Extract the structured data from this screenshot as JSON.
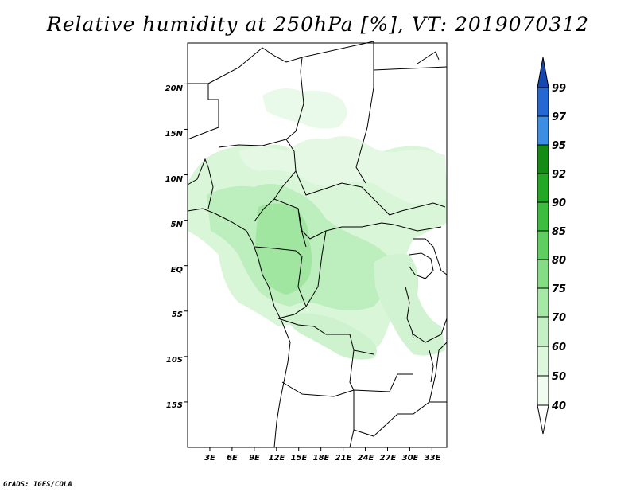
{
  "title": "Relative humidity at 250hPa [%], VT: 2019070312",
  "credit": "GrADS: IGES/COLA",
  "map": {
    "lon_range": [
      0,
      35
    ],
    "lat_range": [
      -20,
      24.5
    ],
    "x_ticks": [
      {
        "lon": 3,
        "label": "3E"
      },
      {
        "lon": 6,
        "label": "6E"
      },
      {
        "lon": 9,
        "label": "9E"
      },
      {
        "lon": 12,
        "label": "12E"
      },
      {
        "lon": 15,
        "label": "15E"
      },
      {
        "lon": 18,
        "label": "18E"
      },
      {
        "lon": 21,
        "label": "21E"
      },
      {
        "lon": 24,
        "label": "24E"
      },
      {
        "lon": 27,
        "label": "27E"
      },
      {
        "lon": 30,
        "label": "30E"
      },
      {
        "lon": 33,
        "label": "33E"
      }
    ],
    "y_ticks": [
      {
        "lat": 20,
        "label": "20N"
      },
      {
        "lat": 15,
        "label": "15N"
      },
      {
        "lat": 10,
        "label": "10N"
      },
      {
        "lat": 5,
        "label": "5N"
      },
      {
        "lat": 0,
        "label": "EQ"
      },
      {
        "lat": -5,
        "label": "5S"
      },
      {
        "lat": -10,
        "label": "10S"
      },
      {
        "lat": -15,
        "label": "15S"
      }
    ]
  },
  "colorbar": {
    "levels": [
      {
        "label": "40",
        "color": "#f0fcf0"
      },
      {
        "label": "50",
        "color": "#dcf7dc"
      },
      {
        "label": "60",
        "color": "#c4f0c4"
      },
      {
        "label": "70",
        "color": "#a6e8a6"
      },
      {
        "label": "75",
        "color": "#84dc84"
      },
      {
        "label": "80",
        "color": "#5ecf5e"
      },
      {
        "label": "85",
        "color": "#3dbd3d"
      },
      {
        "label": "90",
        "color": "#23a823"
      },
      {
        "label": "92",
        "color": "#128c12"
      },
      {
        "label": "95",
        "color": "#3c8ee4"
      },
      {
        "label": "97",
        "color": "#2468d4"
      },
      {
        "label": "99",
        "color": "#1448b0"
      }
    ]
  }
}
